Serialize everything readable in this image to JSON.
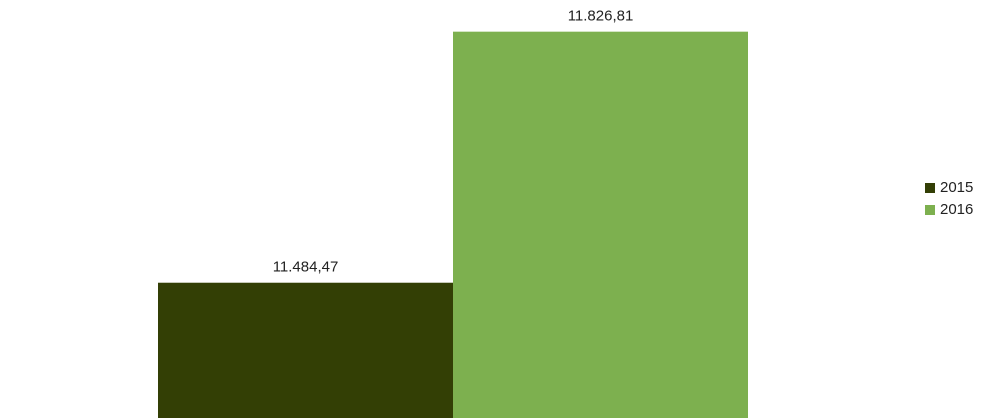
{
  "chart_data": {
    "type": "bar",
    "categories": [
      null
    ],
    "series": [
      {
        "name": "2015",
        "color": "#333f05",
        "values": [
          11484.47
        ],
        "value_labels": [
          "11.484,47"
        ]
      },
      {
        "name": "2016",
        "color": "#7db04f",
        "values": [
          11826.81
        ],
        "value_labels": [
          "11.826,81"
        ]
      }
    ],
    "ylim": [
      11300,
      11870
    ],
    "legend": "right"
  }
}
